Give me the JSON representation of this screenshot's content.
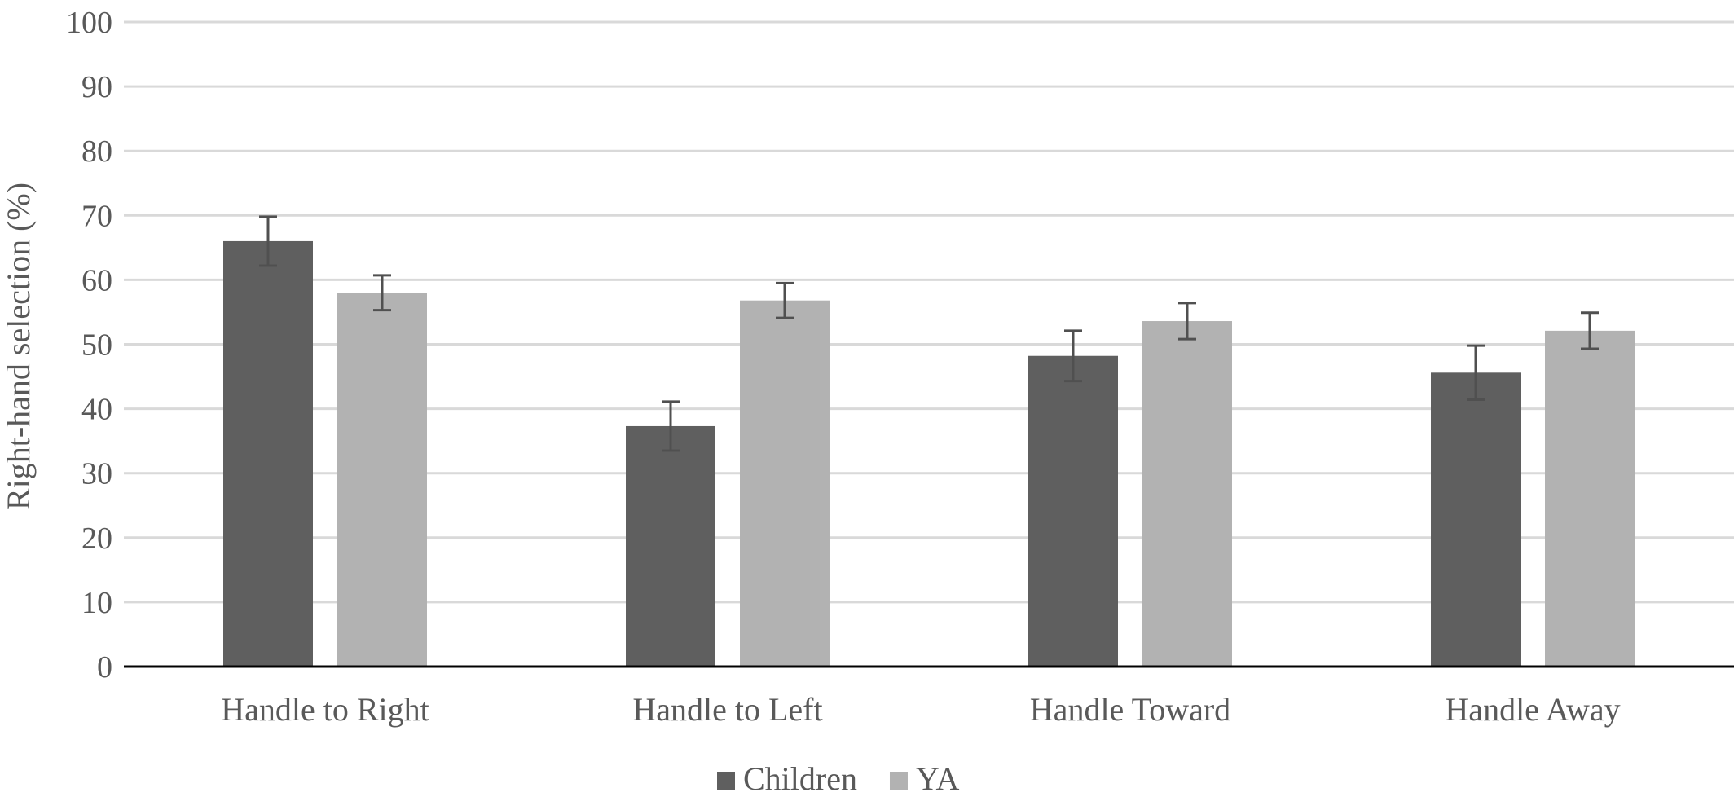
{
  "chart_data": {
    "type": "bar",
    "title": "",
    "xlabel": "",
    "ylabel": "Right-hand selection (%)",
    "ylim": [
      0,
      100
    ],
    "yticks": [
      0,
      10,
      20,
      30,
      40,
      50,
      60,
      70,
      80,
      90,
      100
    ],
    "grid": true,
    "legend_position": "bottom",
    "categories": [
      "Handle to Right",
      "Handle to Left",
      "Handle Toward",
      "Handle Away"
    ],
    "series": [
      {
        "name": "Children",
        "color": "#5f5f5f",
        "values": [
          66.0,
          37.3,
          48.2,
          45.6
        ],
        "error": [
          3.8,
          3.8,
          3.9,
          4.2
        ]
      },
      {
        "name": "YA",
        "color": "#b2b2b2",
        "values": [
          58.0,
          56.8,
          53.6,
          52.1
        ],
        "error": [
          2.7,
          2.7,
          2.8,
          2.8
        ]
      }
    ],
    "colors": {
      "grid": "#d9d9d9",
      "axis": "#000000",
      "error_bar": "#505050",
      "text": "#595959"
    }
  }
}
